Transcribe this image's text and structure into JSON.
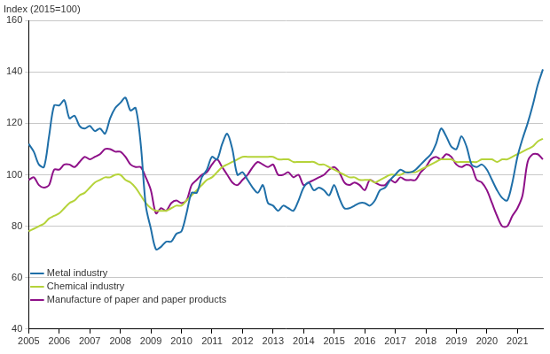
{
  "chart_data": {
    "type": "line",
    "title": "Index (2015=100)",
    "categories": [
      "2005",
      null,
      null,
      null,
      null,
      null,
      "2006",
      null,
      null,
      null,
      null,
      null,
      "2007",
      null,
      null,
      null,
      null,
      null,
      "2008",
      null,
      null,
      null,
      null,
      null,
      "2009",
      null,
      null,
      null,
      null,
      null,
      "2010",
      null,
      null,
      null,
      null,
      null,
      "2011",
      null,
      null,
      null,
      null,
      null,
      "2012",
      null,
      null,
      null,
      null,
      null,
      "2013",
      null,
      null,
      null,
      null,
      null,
      "2014",
      null,
      null,
      null,
      null,
      null,
      "2015",
      null,
      null,
      null,
      null,
      null,
      "2016",
      null,
      null,
      null,
      null,
      null,
      "2017",
      null,
      null,
      null,
      null,
      null,
      "2018",
      null,
      null,
      null,
      null,
      null,
      "2019",
      null,
      null,
      null,
      null,
      null,
      "2020",
      null,
      null,
      null,
      null,
      null,
      "2021",
      null,
      null,
      null,
      null,
      null
    ],
    "series": [
      {
        "name": "Metal industry",
        "color": "#1f6fa8",
        "values": [
          112,
          109,
          104,
          103,
          115,
          127,
          127,
          129,
          122,
          123,
          119,
          118,
          119,
          117,
          118,
          116,
          122,
          126,
          128,
          130,
          125,
          126,
          112,
          88,
          79,
          71,
          72,
          74,
          74,
          77,
          78,
          85,
          93,
          93,
          99,
          102,
          107,
          106,
          112,
          116,
          110,
          100,
          101,
          98,
          95,
          93,
          96,
          89,
          88,
          86,
          88,
          87,
          86,
          90,
          95,
          97,
          94,
          95,
          94,
          92,
          96,
          91,
          87,
          87,
          88,
          89,
          89,
          88,
          90,
          94,
          95,
          98,
          100,
          102,
          101,
          101,
          102,
          104,
          106,
          108,
          112,
          118,
          115,
          111,
          110,
          115,
          111,
          104,
          103,
          104,
          102,
          98,
          94,
          91,
          90,
          97,
          107,
          114,
          120,
          127,
          135,
          141
        ]
      },
      {
        "name": "Chemical industry",
        "color": "#b5d33a",
        "values": [
          78,
          79,
          80,
          81,
          83,
          84,
          85,
          87,
          89,
          90,
          92,
          93,
          95,
          97,
          98,
          99,
          99,
          100,
          100,
          98,
          97,
          95,
          92,
          89,
          87,
          86,
          86,
          86,
          87,
          88,
          88,
          90,
          92,
          94,
          96,
          98,
          99,
          101,
          103,
          104,
          105,
          106,
          107,
          107,
          107,
          107,
          107,
          107,
          107,
          106,
          106,
          106,
          105,
          105,
          105,
          105,
          105,
          104,
          104,
          103,
          102,
          101,
          100,
          99,
          99,
          98,
          98,
          98,
          97,
          98,
          99,
          100,
          100,
          100,
          101,
          101,
          101,
          102,
          103,
          104,
          105,
          106,
          106,
          106,
          105,
          105,
          105,
          105,
          105,
          106,
          106,
          106,
          105,
          106,
          106,
          107,
          108,
          109,
          110,
          111,
          113,
          114
        ]
      },
      {
        "name": "Manufacture of paper and paper products",
        "color": "#8e1088",
        "values": [
          98,
          99,
          96,
          95,
          96,
          102,
          102,
          104,
          104,
          103,
          105,
          107,
          106,
          107,
          108,
          110,
          110,
          109,
          109,
          107,
          104,
          103,
          103,
          99,
          94,
          85,
          87,
          86,
          89,
          90,
          89,
          90,
          96,
          98,
          100,
          101,
          104,
          106,
          103,
          100,
          97,
          96,
          98,
          100,
          103,
          105,
          104,
          103,
          104,
          100,
          100,
          101,
          99,
          100,
          96,
          97,
          98,
          99,
          100,
          102,
          103,
          101,
          97,
          96,
          97,
          96,
          94,
          98,
          97,
          96,
          96,
          98,
          97,
          99,
          98,
          98,
          98,
          101,
          103,
          106,
          107,
          106,
          108,
          107,
          104,
          103,
          104,
          103,
          98,
          97,
          94,
          89,
          84,
          80,
          80,
          84,
          87,
          92,
          105,
          108,
          108,
          106
        ]
      }
    ],
    "ylim": [
      40,
      160
    ],
    "yticks": [
      40,
      60,
      80,
      100,
      120,
      140,
      160
    ],
    "grid": true,
    "legend": "top-right"
  }
}
